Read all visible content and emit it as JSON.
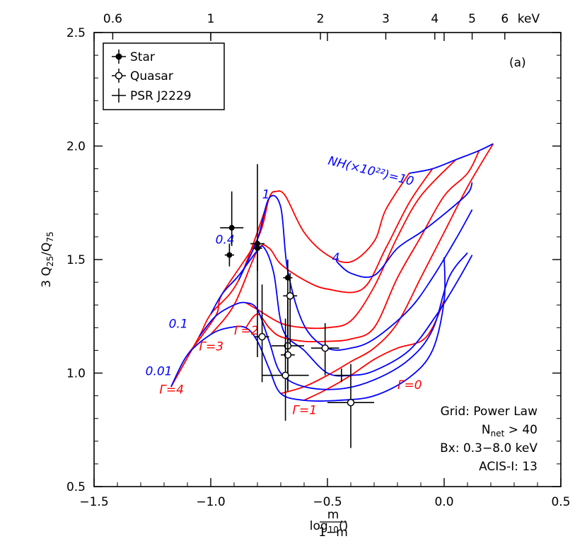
{
  "chart_data": {
    "type": "line",
    "panel_label": "(a)",
    "xlabel": "log10(m/(1−m))",
    "ylabel": "3 Q25/Q75",
    "xlim": [
      -1.5,
      0.5
    ],
    "ylim": [
      0.5,
      2.5
    ],
    "x_ticks": [
      -1.5,
      -1.0,
      -0.5,
      0.0,
      0.5
    ],
    "x_tick_labels": [
      "−1.5",
      "−1.0",
      "−0.5",
      "0.0",
      "0.5"
    ],
    "y_ticks": [
      0.5,
      1.0,
      1.5,
      2.0,
      2.5
    ],
    "y_tick_labels": [
      "0.5",
      "1.0",
      "1.5",
      "2.0",
      "2.5"
    ],
    "top_axis": {
      "unit": "keV",
      "ticks": [
        {
          "x": -1.42,
          "label": "0.6"
        },
        {
          "x": -1.0,
          "label": "1"
        },
        {
          "x": -0.53,
          "label": "2"
        },
        {
          "x": -0.25,
          "label": "3"
        },
        {
          "x": -0.04,
          "label": "4"
        },
        {
          "x": 0.12,
          "label": "5"
        },
        {
          "x": 0.26,
          "label": "6"
        }
      ]
    },
    "legend": {
      "placement": "top-left",
      "entries": [
        {
          "label": "Star",
          "marker": "filled-circle"
        },
        {
          "label": "Quasar",
          "marker": "open-circle"
        },
        {
          "label": "PSR J2229",
          "marker": "cross"
        }
      ]
    },
    "notes": [
      "Grid: Power Law",
      "Nnet > 40",
      "Bx: 0.3−8.0 keV",
      "ACIS-I: 13"
    ],
    "grid_blue": [
      {
        "label": "0.01",
        "points": [
          [
            -1.17,
            0.94
          ],
          [
            -1.1,
            1.08
          ],
          [
            -1.0,
            1.17
          ],
          [
            -0.92,
            1.2
          ],
          [
            -0.85,
            1.2
          ],
          [
            -0.8,
            1.14
          ],
          [
            -0.75,
            1.02
          ],
          [
            -0.7,
            0.91
          ],
          [
            -0.6,
            0.88
          ],
          [
            -0.45,
            0.88
          ],
          [
            -0.3,
            0.9
          ],
          [
            -0.15,
            0.98
          ],
          [
            -0.05,
            1.1
          ],
          [
            0.0,
            1.32
          ],
          [
            0.0,
            1.51
          ]
        ]
      },
      {
        "label": "0.1",
        "points": [
          [
            -1.05,
            1.16
          ],
          [
            -0.98,
            1.25
          ],
          [
            -0.9,
            1.3
          ],
          [
            -0.85,
            1.31
          ],
          [
            -0.8,
            1.28
          ],
          [
            -0.75,
            1.14
          ],
          [
            -0.7,
            1.0
          ],
          [
            -0.6,
            0.94
          ],
          [
            -0.45,
            0.93
          ],
          [
            -0.3,
            0.97
          ],
          [
            -0.15,
            1.06
          ],
          [
            -0.05,
            1.19
          ],
          [
            0.02,
            1.42
          ],
          [
            0.1,
            1.53
          ]
        ]
      },
      {
        "label": "0.4",
        "points": [
          [
            -1.0,
            1.26
          ],
          [
            -0.95,
            1.35
          ],
          [
            -0.88,
            1.43
          ],
          [
            -0.8,
            1.54
          ],
          [
            -0.77,
            1.55
          ],
          [
            -0.73,
            1.44
          ],
          [
            -0.69,
            1.19
          ],
          [
            -0.6,
            1.1
          ],
          [
            -0.5,
            1.0
          ],
          [
            -0.4,
            0.99
          ],
          [
            -0.3,
            1.01
          ],
          [
            -0.15,
            1.1
          ],
          [
            -0.03,
            1.26
          ],
          [
            0.06,
            1.41
          ],
          [
            0.12,
            1.52
          ]
        ]
      },
      {
        "label": "1",
        "points": [
          [
            -0.88,
            1.41
          ],
          [
            -0.8,
            1.59
          ],
          [
            -0.75,
            1.77
          ],
          [
            -0.7,
            1.73
          ],
          [
            -0.67,
            1.45
          ],
          [
            -0.6,
            1.21
          ],
          [
            -0.5,
            1.11
          ],
          [
            -0.4,
            1.11
          ],
          [
            -0.3,
            1.15
          ],
          [
            -0.15,
            1.28
          ],
          [
            -0.05,
            1.42
          ],
          [
            0.05,
            1.59
          ],
          [
            0.12,
            1.72
          ]
        ]
      },
      {
        "label": "4",
        "points": [
          [
            -0.46,
            1.49
          ],
          [
            -0.4,
            1.44
          ],
          [
            -0.3,
            1.43
          ],
          [
            -0.2,
            1.55
          ],
          [
            -0.1,
            1.62
          ],
          [
            0.0,
            1.7
          ],
          [
            0.1,
            1.79
          ],
          [
            0.12,
            1.84
          ]
        ]
      },
      {
        "label": "NH(×10²²)=10",
        "points": [
          [
            -0.15,
            1.88
          ],
          [
            -0.05,
            1.9
          ],
          [
            0.05,
            1.94
          ],
          [
            0.15,
            1.98
          ],
          [
            0.21,
            2.01
          ]
        ]
      }
    ],
    "grid_red": [
      {
        "label": "Γ=4",
        "points": [
          [
            -1.17,
            0.94
          ],
          [
            -1.05,
            1.16
          ],
          [
            -1.0,
            1.26
          ],
          [
            -0.88,
            1.41
          ],
          [
            -0.75,
            1.77
          ]
        ]
      },
      {
        "label": "Γ=3",
        "points": [
          [
            -1.1,
            1.08
          ],
          [
            -0.98,
            1.25
          ],
          [
            -0.95,
            1.35
          ],
          [
            -0.8,
            1.59
          ],
          [
            -0.75,
            1.77
          ],
          [
            -0.72,
            1.8
          ],
          [
            -0.68,
            1.78
          ],
          [
            -0.6,
            1.62
          ],
          [
            -0.5,
            1.52
          ],
          [
            -0.4,
            1.49
          ],
          [
            -0.3,
            1.58
          ],
          [
            -0.25,
            1.72
          ],
          [
            -0.15,
            1.88
          ]
        ]
      },
      {
        "label": "Γ=2",
        "points": [
          [
            -1.0,
            1.17
          ],
          [
            -0.9,
            1.3
          ],
          [
            -0.8,
            1.54
          ],
          [
            -0.75,
            1.55
          ],
          [
            -0.7,
            1.48
          ],
          [
            -0.6,
            1.41
          ],
          [
            -0.5,
            1.37
          ],
          [
            -0.35,
            1.37
          ],
          [
            -0.25,
            1.55
          ],
          [
            -0.15,
            1.75
          ],
          [
            -0.05,
            1.9
          ]
        ]
      },
      {
        "label": "",
        "points": [
          [
            -0.85,
            1.31
          ],
          [
            -0.8,
            1.28
          ],
          [
            -0.7,
            1.22
          ],
          [
            -0.6,
            1.2
          ],
          [
            -0.5,
            1.2
          ],
          [
            -0.4,
            1.23
          ],
          [
            -0.3,
            1.38
          ],
          [
            -0.2,
            1.6
          ],
          [
            -0.1,
            1.78
          ],
          [
            0.05,
            1.94
          ]
        ]
      },
      {
        "label": "",
        "points": [
          [
            -0.85,
            1.2
          ],
          [
            -0.8,
            1.26
          ],
          [
            -0.75,
            1.2
          ],
          [
            -0.7,
            1.16
          ],
          [
            -0.6,
            1.14
          ],
          [
            -0.5,
            1.14
          ],
          [
            -0.4,
            1.15
          ],
          [
            -0.3,
            1.2
          ],
          [
            -0.2,
            1.42
          ],
          [
            -0.1,
            1.6
          ],
          [
            0.0,
            1.78
          ],
          [
            0.1,
            1.88
          ],
          [
            0.15,
            1.98
          ]
        ]
      },
      {
        "label": "Γ=1",
        "points": [
          [
            -0.7,
            0.91
          ],
          [
            -0.6,
            0.94
          ],
          [
            -0.5,
            0.99
          ],
          [
            -0.4,
            1.05
          ],
          [
            -0.3,
            1.11
          ],
          [
            -0.2,
            1.22
          ],
          [
            -0.1,
            1.42
          ],
          [
            0.0,
            1.62
          ],
          [
            0.1,
            1.82
          ],
          [
            0.21,
            2.01
          ]
        ]
      },
      {
        "label": "Γ=0",
        "points": [
          [
            -0.6,
            0.88
          ],
          [
            -0.5,
            0.93
          ],
          [
            -0.4,
            0.99
          ],
          [
            -0.3,
            1.06
          ],
          [
            -0.2,
            1.11
          ],
          [
            -0.1,
            1.14
          ],
          [
            -0.05,
            1.2
          ],
          [
            0.0,
            1.32
          ]
        ]
      }
    ],
    "gamma_labels": [
      {
        "text": "Γ=4",
        "x": -1.22,
        "y": 0.91
      },
      {
        "text": "Γ=3",
        "x": -1.05,
        "y": 1.1
      },
      {
        "text": "Γ=2",
        "x": -0.9,
        "y": 1.17
      },
      {
        "text": "Γ=1",
        "x": -0.65,
        "y": 0.82
      },
      {
        "text": "Γ=0",
        "x": -0.2,
        "y": 0.93
      }
    ],
    "nh_labels": [
      {
        "text": "0.01",
        "x": -1.28,
        "y": 0.99
      },
      {
        "text": "0.1",
        "x": -1.18,
        "y": 1.2
      },
      {
        "text": "0.4",
        "x": -0.98,
        "y": 1.57
      },
      {
        "text": "1",
        "x": -0.78,
        "y": 1.77
      },
      {
        "text": "4",
        "x": -0.48,
        "y": 1.49
      },
      {
        "text": "NH(×10²²)=10",
        "x": -0.5,
        "y": 1.92
      }
    ],
    "series": [
      {
        "name": "Star",
        "marker": "filled-circle",
        "points": [
          {
            "x": -0.91,
            "y": 1.64,
            "xerr": 0.05,
            "yerr_lo": 0.08,
            "yerr_hi": 0.16
          },
          {
            "x": -0.92,
            "y": 1.52,
            "xerr": 0.02,
            "yerr_lo": 0.05,
            "yerr_hi": 0.05
          },
          {
            "x": -0.8,
            "y": 1.57,
            "xerr": 0.03,
            "yerr_lo": 0.5,
            "yerr_hi": 0.35
          },
          {
            "x": -0.8,
            "y": 1.55,
            "xerr": 0.02,
            "yerr_lo": 0.1,
            "yerr_hi": 0.05
          },
          {
            "x": -0.67,
            "y": 1.42,
            "xerr": 0.02,
            "yerr_lo": 0.28,
            "yerr_hi": 0.08
          }
        ]
      },
      {
        "name": "Quasar",
        "marker": "open-circle",
        "points": [
          {
            "x": -0.78,
            "y": 1.16,
            "xerr": 0.03,
            "yerr_lo": 0.2,
            "yerr_hi": 0.23
          },
          {
            "x": -0.66,
            "y": 1.34,
            "xerr": 0.03,
            "yerr_lo": 0.22,
            "yerr_hi": 0.1
          },
          {
            "x": -0.67,
            "y": 1.12,
            "xerr": 0.07,
            "yerr_lo": 0.2,
            "yerr_hi": 0.2
          },
          {
            "x": -0.67,
            "y": 1.08,
            "xerr": 0.03,
            "yerr_lo": 0.15,
            "yerr_hi": 0.12
          },
          {
            "x": -0.68,
            "y": 0.99,
            "xerr": 0.1,
            "yerr_lo": 0.2,
            "yerr_hi": 0.25
          },
          {
            "x": -0.51,
            "y": 1.11,
            "xerr": 0.06,
            "yerr_lo": 0.12,
            "yerr_hi": 0.11
          },
          {
            "x": -0.4,
            "y": 0.87,
            "xerr": 0.1,
            "yerr_lo": 0.2,
            "yerr_hi": 0.17
          }
        ]
      },
      {
        "name": "PSR J2229",
        "marker": "cross",
        "points": [
          {
            "x": -0.44,
            "y": 0.99,
            "xerr": 0.03,
            "yerr_lo": 0.03,
            "yerr_hi": 0.03
          }
        ]
      }
    ],
    "colors": {
      "grid_red": "#ff0000",
      "grid_blue": "#0000ff",
      "points": "#000000"
    }
  }
}
